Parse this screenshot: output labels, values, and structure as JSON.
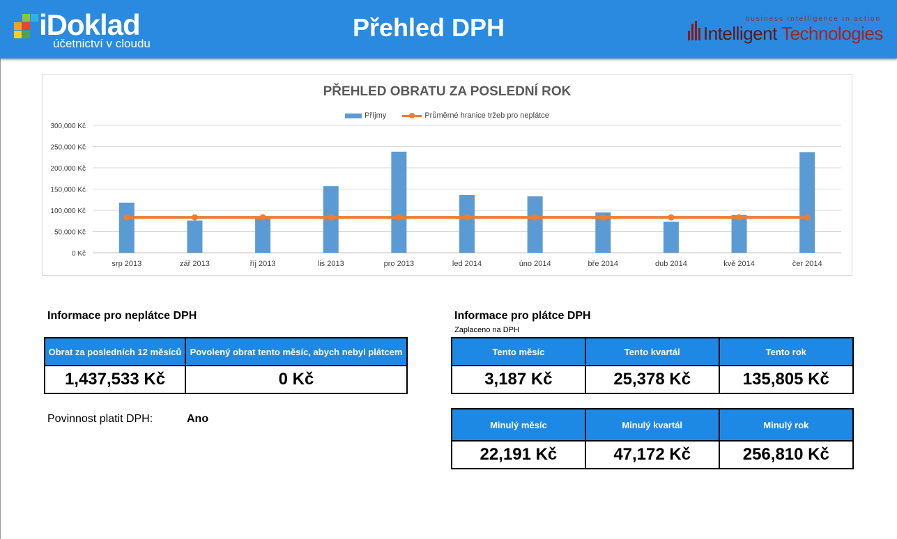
{
  "header": {
    "logo_text": "iDoklad",
    "logo_subtitle": "účetnictví v cloudu",
    "title": "Přehled DPH",
    "partner_tagline": "business intelligence in action",
    "partner_name_part1": "Intelligent",
    "partner_name_part2": "Technologies",
    "colors": {
      "header_bg": "#2a8ae0",
      "table_header_bg": "#1e88e5"
    }
  },
  "chart_data": {
    "type": "bar",
    "title": "PŘEHLED OBRATU ZA POSLEDNÍ ROK",
    "categories": [
      "srp 2013",
      "zář 2013",
      "říj 2013",
      "lis 2013",
      "pro 2013",
      "led 2014",
      "úno 2014",
      "bře 2014",
      "dub 2014",
      "kvě 2014",
      "čer 2014"
    ],
    "series": [
      {
        "name": "Příjmy",
        "kind": "bar",
        "color": "#5b9bd5",
        "values": [
          118000,
          76000,
          84000,
          157000,
          238000,
          136000,
          133000,
          95000,
          73000,
          89000,
          237000
        ]
      },
      {
        "name": "Průměrné hranice tržeb pro neplátce",
        "kind": "line",
        "color": "#ed7d31",
        "values": [
          83333,
          83333,
          83333,
          83333,
          83333,
          83333,
          83333,
          83333,
          83333,
          83333,
          83333
        ]
      }
    ],
    "yticks": [
      "0 Kč",
      "50,000 Kč",
      "100,000 Kč",
      "150,000 Kč",
      "200,000 Kč",
      "250,000 Kč",
      "300,000 Kč"
    ],
    "ylim": [
      0,
      300000
    ],
    "grid": true,
    "legend_position": "top"
  },
  "nonpayer": {
    "title": "Informace pro neplátce DPH",
    "col1_header": "Obrat za posledních 12 měsíců",
    "col2_header": "Povolený obrat tento měsíc, abych nebyl plátcem",
    "col1_value": "1,437,533 Kč",
    "col2_value": "0 Kč",
    "duty_label": "Povinnost platit DPH:",
    "duty_value": "Ano"
  },
  "payer": {
    "title": "Informace pro plátce DPH",
    "note": "Zaplaceno na DPH",
    "current": {
      "headers": [
        "Tento měsíc",
        "Tento kvartál",
        "Tento rok"
      ],
      "values": [
        "3,187 Kč",
        "25,378 Kč",
        "135,805 Kč"
      ]
    },
    "previous": {
      "headers": [
        "Minulý měsíc",
        "Minulý kvartál",
        "Minulý rok"
      ],
      "values": [
        "22,191 Kč",
        "47,172 Kč",
        "256,810 Kč"
      ]
    }
  }
}
